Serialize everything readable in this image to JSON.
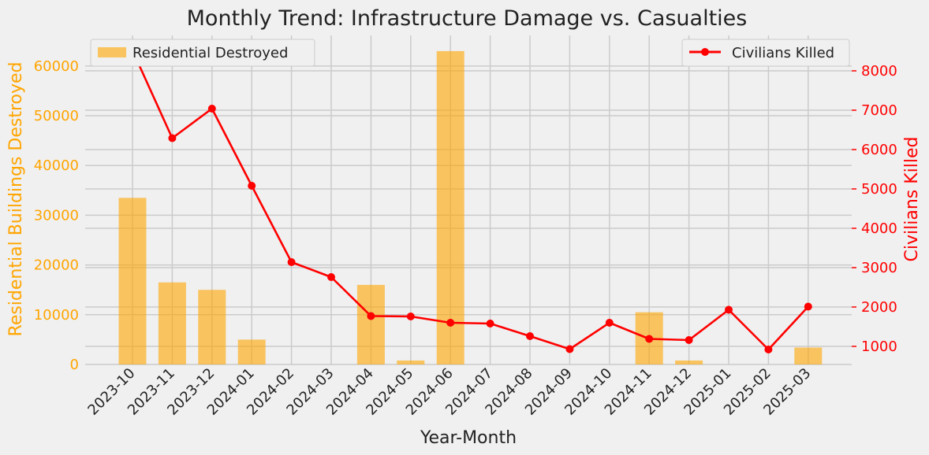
{
  "chart_data": {
    "type": "bar",
    "title": "Monthly Trend: Infrastructure Damage vs. Casualties",
    "xlabel": "Year-Month",
    "categories": [
      "2023-10",
      "2023-11",
      "2023-12",
      "2024-01",
      "2024-02",
      "2024-03",
      "2024-04",
      "2024-05",
      "2024-06",
      "2024-07",
      "2024-08",
      "2024-09",
      "2024-10",
      "2024-11",
      "2024-12",
      "2025-01",
      "2025-02",
      "2025-03"
    ],
    "series": [
      {
        "name": "Residential Destroyed",
        "type": "bar",
        "axis": "left",
        "color": "#ffa500",
        "values": [
          33500,
          16500,
          15000,
          5000,
          0,
          0,
          16000,
          800,
          63000,
          0,
          0,
          0,
          0,
          10500,
          800,
          0,
          0,
          3400
        ]
      },
      {
        "name": "Civilians Killed",
        "type": "line",
        "axis": "right",
        "color": "#ff0000",
        "values": [
          8520,
          6290,
          7040,
          5080,
          3140,
          2760,
          1770,
          1760,
          1600,
          1580,
          1260,
          930,
          1600,
          1190,
          1160,
          1930,
          920,
          2010
        ]
      }
    ],
    "y_left": {
      "label": "Residential Buildings Destroyed",
      "ylim": [
        0,
        66150
      ],
      "ticks": [
        0,
        10000,
        20000,
        30000,
        40000,
        50000,
        60000
      ],
      "color": "#ffa500"
    },
    "y_right": {
      "label": "Civilians Killed",
      "ylim": [
        540,
        8900
      ],
      "ticks": [
        1000,
        2000,
        3000,
        4000,
        5000,
        6000,
        7000,
        8000
      ],
      "color": "#ff0000"
    },
    "grid": true,
    "legend_left": "upper-left",
    "legend_right": "upper-right"
  }
}
